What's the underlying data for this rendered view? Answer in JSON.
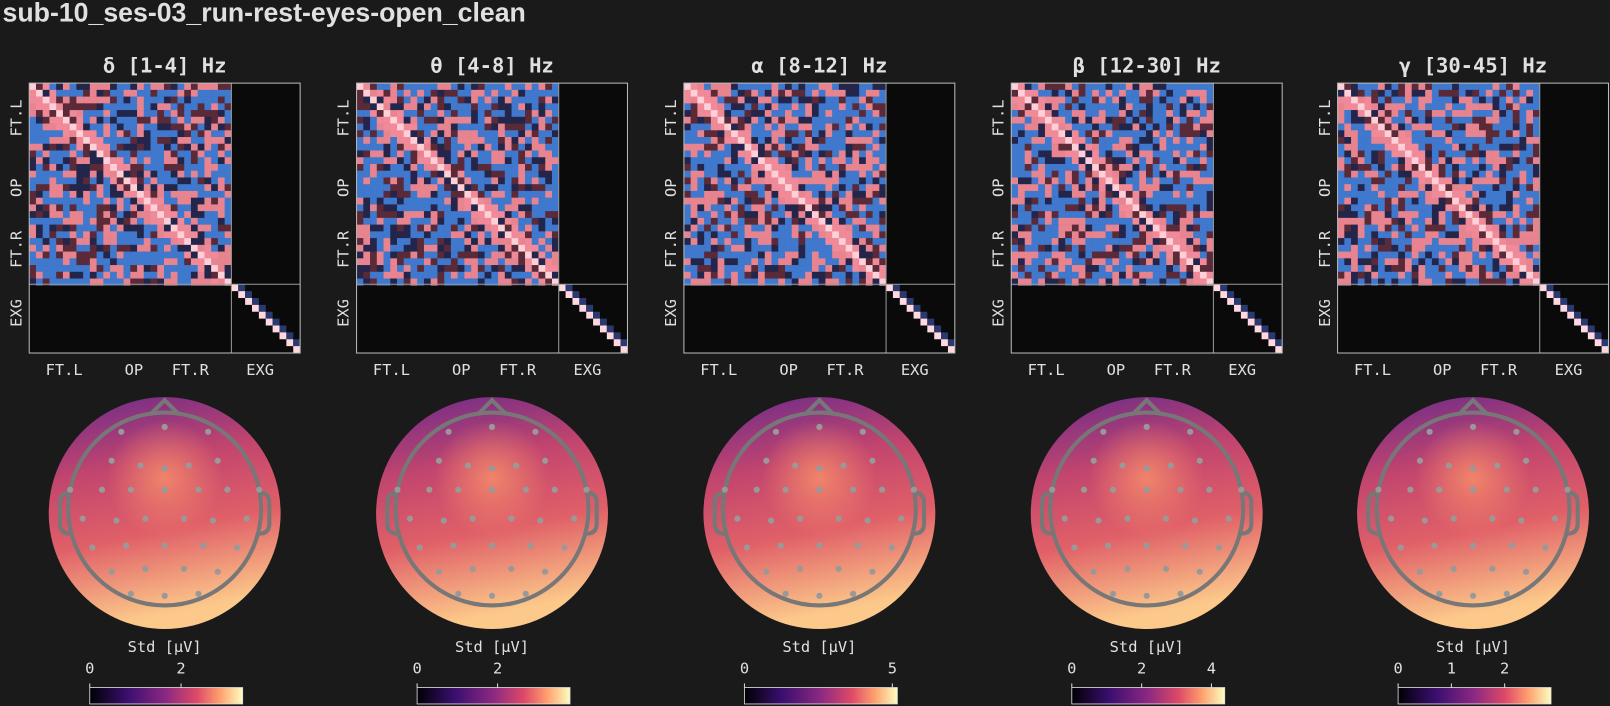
{
  "title": "sub-10_ses-03_run-rest-eyes-open_clean",
  "panels": [
    {
      "title": "δ [1-4] Hz",
      "matrix_xticklabels": [
        "FT.L",
        "OP",
        "FT.R",
        "EXG"
      ],
      "matrix_yticklabels": [
        "FT.L",
        "OP",
        "FT.R",
        "EXG"
      ],
      "colorbar": {
        "label": "Std [µV]",
        "xlim": [
          0,
          3.35
        ],
        "xticks": [
          0,
          2
        ]
      }
    },
    {
      "title": "θ [4-8] Hz",
      "matrix_xticklabels": [
        "FT.L",
        "OP",
        "FT.R",
        "EXG"
      ],
      "matrix_yticklabels": [
        "FT.L",
        "OP",
        "FT.R",
        "EXG"
      ],
      "colorbar": {
        "label": "Std [µV]",
        "xlim": [
          0,
          3.8
        ],
        "xticks": [
          0,
          2
        ]
      }
    },
    {
      "title": "α [8-12] Hz",
      "matrix_xticklabels": [
        "FT.L",
        "OP",
        "FT.R",
        "EXG"
      ],
      "matrix_yticklabels": [
        "FT.L",
        "OP",
        "FT.R",
        "EXG"
      ],
      "colorbar": {
        "label": "Std [µV]",
        "xlim": [
          0,
          5.17
        ],
        "xticks": [
          0,
          5
        ]
      }
    },
    {
      "title": "β [12-30] Hz",
      "matrix_xticklabels": [
        "FT.L",
        "OP",
        "FT.R",
        "EXG"
      ],
      "matrix_yticklabels": [
        "FT.L",
        "OP",
        "FT.R",
        "EXG"
      ],
      "colorbar": {
        "label": "Std [µV]",
        "xlim": [
          0,
          4.38
        ],
        "xticks": [
          0,
          2,
          4
        ]
      }
    },
    {
      "title": "γ [30-45] Hz",
      "matrix_xticklabels": [
        "FT.L",
        "OP",
        "FT.R",
        "EXG"
      ],
      "matrix_yticklabels": [
        "FT.L",
        "OP",
        "FT.R",
        "EXG"
      ],
      "colorbar": {
        "label": "Std [µV]",
        "xlim": [
          0,
          2.87
        ],
        "xticks": [
          0,
          1,
          2
        ]
      }
    }
  ]
}
